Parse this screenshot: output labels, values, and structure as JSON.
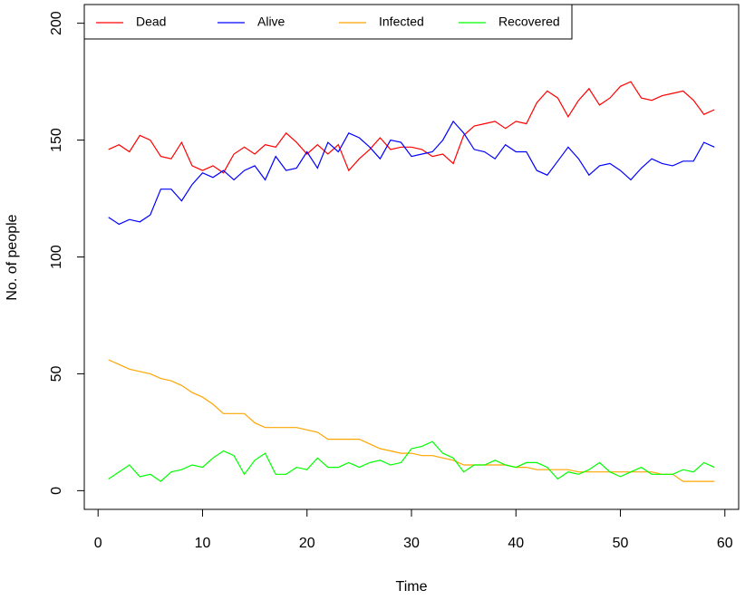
{
  "chart_data": {
    "type": "line",
    "x_label": "Time",
    "y_label": "No. of people",
    "x": [
      1,
      2,
      3,
      4,
      5,
      6,
      7,
      8,
      9,
      10,
      11,
      12,
      13,
      14,
      15,
      16,
      17,
      18,
      19,
      20,
      21,
      22,
      23,
      24,
      25,
      26,
      27,
      28,
      29,
      30,
      31,
      32,
      33,
      34,
      35,
      36,
      37,
      38,
      39,
      40,
      41,
      42,
      43,
      44,
      45,
      46,
      47,
      48,
      49,
      50,
      51,
      52,
      53,
      54,
      55,
      56,
      57,
      58,
      59
    ],
    "series": [
      {
        "name": "Dead",
        "color": "#ff0000",
        "values": [
          146,
          148,
          145,
          152,
          150,
          143,
          142,
          149,
          139,
          137,
          139,
          136,
          144,
          147,
          144,
          148,
          147,
          153,
          149,
          144,
          148,
          144,
          148,
          137,
          142,
          146,
          151,
          146,
          147,
          147,
          146,
          143,
          144,
          140,
          152,
          156,
          157,
          158,
          155,
          158,
          157,
          166,
          171,
          168,
          160,
          167,
          172,
          165,
          168,
          173,
          175,
          168,
          167,
          169,
          170,
          171,
          167,
          161,
          163
        ]
      },
      {
        "name": "Alive",
        "color": "#0000ff",
        "values": [
          117,
          114,
          116,
          115,
          118,
          129,
          129,
          124,
          131,
          136,
          134,
          137,
          133,
          137,
          139,
          133,
          143,
          137,
          138,
          145,
          138,
          149,
          145,
          153,
          151,
          147,
          142,
          150,
          149,
          143,
          144,
          145,
          150,
          158,
          153,
          146,
          145,
          142,
          148,
          145,
          145,
          137,
          135,
          141,
          147,
          142,
          135,
          139,
          140,
          137,
          133,
          138,
          142,
          140,
          139,
          141,
          141,
          149,
          147
        ]
      },
      {
        "name": "Infected",
        "color": "#ffa500",
        "values": [
          56,
          54,
          52,
          51,
          50,
          48,
          47,
          45,
          42,
          40,
          37,
          33,
          33,
          33,
          29,
          27,
          27,
          27,
          27,
          26,
          25,
          22,
          22,
          22,
          22,
          20,
          18,
          17,
          16,
          16,
          15,
          15,
          14,
          13,
          11,
          11,
          11,
          11,
          11,
          10,
          10,
          9,
          9,
          9,
          9,
          8,
          8,
          8,
          8,
          8,
          8,
          8,
          8,
          7,
          7,
          4,
          4,
          4,
          4
        ]
      },
      {
        "name": "Recovered",
        "color": "#00ff00",
        "values": [
          5,
          8,
          11,
          6,
          7,
          4,
          8,
          9,
          11,
          10,
          14,
          17,
          15,
          7,
          13,
          16,
          7,
          7,
          10,
          9,
          14,
          10,
          10,
          12,
          10,
          12,
          13,
          11,
          12,
          18,
          19,
          21,
          16,
          14,
          8,
          11,
          11,
          13,
          11,
          10,
          12,
          12,
          10,
          5,
          8,
          7,
          9,
          12,
          8,
          6,
          8,
          10,
          7,
          7,
          7,
          9,
          8,
          12,
          10
        ]
      }
    ],
    "xlim": [
      -1.32,
      61.32
    ],
    "ylim": [
      -8,
      208
    ],
    "xticks": [
      0,
      10,
      20,
      30,
      40,
      50,
      60
    ],
    "yticks": [
      0,
      50,
      100,
      150,
      200
    ]
  }
}
